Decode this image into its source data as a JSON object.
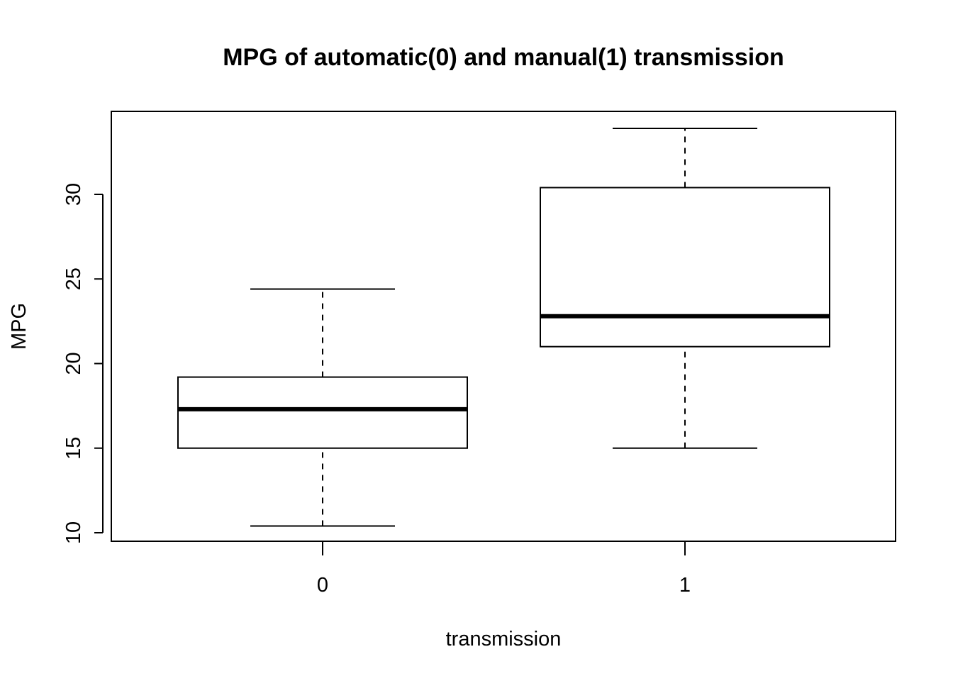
{
  "chart_data": {
    "type": "boxplot",
    "title": "MPG of automatic(0) and manual(1) transmission",
    "xlabel": "transmission",
    "ylabel": "MPG",
    "categories": [
      "0",
      "1"
    ],
    "yticks": [
      10,
      15,
      20,
      25,
      30
    ],
    "ylim": [
      9.5,
      35
    ],
    "grid": false,
    "boxes": [
      {
        "category": "0",
        "whisker_low": 10.4,
        "q1": 15.0,
        "median": 17.3,
        "q3": 19.2,
        "whisker_high": 24.4
      },
      {
        "category": "1",
        "whisker_low": 15.0,
        "q1": 21.0,
        "median": 22.8,
        "q3": 30.4,
        "whisker_high": 33.9
      }
    ]
  }
}
